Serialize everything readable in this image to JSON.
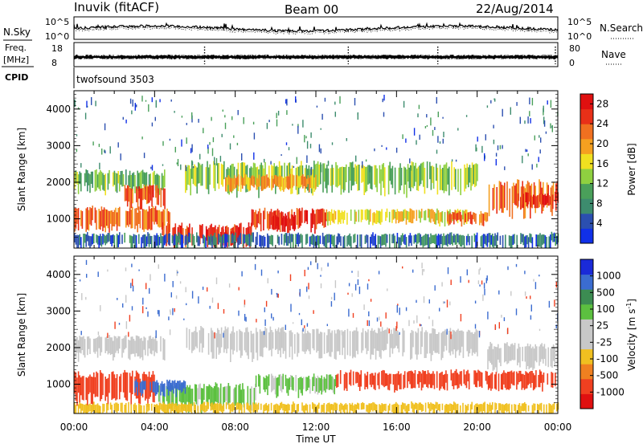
{
  "header": {
    "site": "Inuvik (fitACF)",
    "beam": "Beam 00",
    "date": "22/Aug/2014"
  },
  "top_panels": {
    "noise": {
      "left_label": "N.Sky",
      "right_label": "N.Search",
      "tick_top": "10^5",
      "tick_bottom": "10^0"
    },
    "freq": {
      "left_label_1": "Freq.",
      "left_label_2": "[MHz]",
      "tick_top": "18",
      "tick_bottom": "8",
      "right_label": "Nave",
      "right_tick_top": "80",
      "right_tick_bottom": "0"
    },
    "cpid": {
      "left_label": "CPID",
      "value": "twofsound 3503"
    }
  },
  "colors": {
    "power_scale": [
      "#1030e8",
      "#2b4fb0",
      "#3d8c6e",
      "#4aa05a",
      "#8fd040",
      "#f0e020",
      "#f5a020",
      "#f07020",
      "#e83018",
      "#e01010"
    ],
    "velocity_scale": [
      "#1a2ad8",
      "#3b6cd0",
      "#3c8c52",
      "#5cc040",
      "#c8c8c8",
      "#c8c8c8",
      "#f0c020",
      "#f08020",
      "#f04020",
      "#e01010"
    ]
  },
  "chart_data": [
    {
      "type": "heatmap",
      "name": "power",
      "ylabel": "Slant Range [km]",
      "yticks": [
        "1000",
        "2000",
        "3000",
        "4000"
      ],
      "ylim": [
        200,
        4500
      ],
      "colorbar_label": "Power [dB]",
      "colorbar_ticks": [
        "4",
        "8",
        "12",
        "16",
        "20",
        "24",
        "28"
      ],
      "colorbar_range": [
        0,
        30
      ],
      "bands": [
        {
          "t0": 0.0,
          "t1": 4.8,
          "r0": 650,
          "r1": 1300,
          "value": 22
        },
        {
          "t0": 0.0,
          "t1": 4.5,
          "r0": 1700,
          "r1": 2300,
          "value": 12
        },
        {
          "t0": 2.5,
          "t1": 4.5,
          "r0": 1300,
          "r1": 1900,
          "value": 24
        },
        {
          "t0": 4.3,
          "t1": 8.8,
          "r0": 250,
          "r1": 850,
          "value": 26
        },
        {
          "t0": 7.0,
          "t1": 8.0,
          "r0": 250,
          "r1": 700,
          "value": 28
        },
        {
          "t0": 8.8,
          "t1": 12.5,
          "r0": 700,
          "r1": 1250,
          "value": 26
        },
        {
          "t0": 9.8,
          "t1": 11.0,
          "r0": 650,
          "r1": 1100,
          "value": 28
        },
        {
          "t0": 5.5,
          "t1": 20.0,
          "r0": 1700,
          "r1": 2500,
          "value": 13
        },
        {
          "t0": 7.5,
          "t1": 12.0,
          "r0": 1800,
          "r1": 2200,
          "value": 20
        },
        {
          "t0": 12.5,
          "t1": 19.5,
          "r0": 850,
          "r1": 1250,
          "value": 16
        },
        {
          "t0": 18.5,
          "t1": 20.5,
          "r0": 850,
          "r1": 1200,
          "value": 22
        },
        {
          "t0": 20.5,
          "t1": 24.0,
          "r0": 1100,
          "r1": 2000,
          "value": 22
        },
        {
          "t0": 22.0,
          "t1": 24.0,
          "r0": 1300,
          "r1": 1700,
          "value": 26
        },
        {
          "t0": 0.0,
          "t1": 24.0,
          "r0": 200,
          "r1": 600,
          "value": 6
        }
      ]
    },
    {
      "type": "heatmap",
      "name": "velocity",
      "ylabel": "Slant Range [km]",
      "yticks": [
        "1000",
        "2000",
        "3000",
        "4000"
      ],
      "ylim": [
        200,
        4500
      ],
      "xlabel": "Time UT",
      "xticks": [
        "00:00",
        "04:00",
        "08:00",
        "12:00",
        "16:00",
        "20:00",
        "00:00"
      ],
      "xlim": [
        0,
        24
      ],
      "colorbar_label": "Velocity [m s^-1]",
      "colorbar_ticks": [
        "1000",
        "500",
        "100",
        "25",
        "-25",
        "-100",
        "-500",
        "-1000"
      ],
      "bands": [
        {
          "t0": 0.0,
          "t1": 4.5,
          "r0": 1700,
          "r1": 2300,
          "value": 0
        },
        {
          "t0": 5.5,
          "t1": 20.0,
          "r0": 1700,
          "r1": 2500,
          "value": 0
        },
        {
          "t0": 20.5,
          "t1": 24.0,
          "r0": 1400,
          "r1": 2100,
          "value": 0
        },
        {
          "t0": 0.0,
          "t1": 4.0,
          "r0": 450,
          "r1": 1300,
          "value": -350
        },
        {
          "t0": 4.0,
          "t1": 9.0,
          "r0": 300,
          "r1": 1000,
          "value": 150
        },
        {
          "t0": 3.0,
          "t1": 5.5,
          "r0": 700,
          "r1": 1100,
          "value": 600
        },
        {
          "t0": 9.0,
          "t1": 13.0,
          "r0": 700,
          "r1": 1250,
          "value": 150
        },
        {
          "t0": 13.0,
          "t1": 24.0,
          "r0": 850,
          "r1": 1350,
          "value": -350
        },
        {
          "t0": 0.0,
          "t1": 24.0,
          "r0": 200,
          "r1": 500,
          "value": -80
        }
      ]
    }
  ]
}
